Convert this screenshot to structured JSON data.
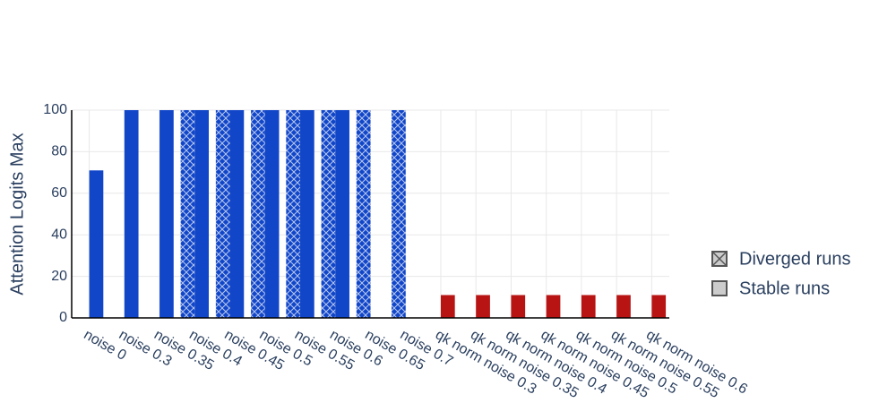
{
  "chart_data": {
    "type": "bar",
    "y_label": "Attention Logits Max",
    "categories": [
      "noise 0",
      "noise 0.3",
      "noise 0.35",
      "noise 0.4",
      "noise 0.45",
      "noise 0.5",
      "noise 0.55",
      "noise 0.6",
      "noise 0.65",
      "noise 0.7",
      "qk norm noise 0.3",
      "qk norm noise 0.35",
      "qk norm noise 0.4",
      "qk norm noise 0.45",
      "qk norm noise 0.5",
      "qk norm noise 0.55",
      "qk norm noise 0.6"
    ],
    "series": [
      {
        "name": "Diverged runs",
        "pattern": "crosshatch",
        "colors": [
          "#1146c9",
          "#1146c9",
          "#1146c9",
          "#1146c9",
          "#1146c9",
          "#1146c9",
          "#1146c9",
          "#1146c9",
          "#1146c9",
          "#1146c9",
          "#b81414",
          "#b81414",
          "#b81414",
          "#b81414",
          "#b81414",
          "#b81414",
          "#b81414"
        ],
        "values": [
          null,
          null,
          null,
          100,
          100,
          100,
          100,
          100,
          100,
          100,
          null,
          null,
          null,
          null,
          null,
          null,
          null
        ]
      },
      {
        "name": "Stable runs",
        "colors": [
          "#1146c9",
          "#1146c9",
          "#1146c9",
          "#1146c9",
          "#1146c9",
          "#1146c9",
          "#1146c9",
          "#1146c9",
          "#1146c9",
          "#1146c9",
          "#b81414",
          "#b81414",
          "#b81414",
          "#b81414",
          "#b81414",
          "#b81414",
          "#b81414"
        ],
        "values": [
          71,
          100,
          100,
          100,
          100,
          100,
          100,
          100,
          null,
          null,
          11,
          11,
          11,
          11,
          11,
          11,
          11
        ]
      }
    ],
    "ylim": [
      0,
      100
    ],
    "yticks": [
      0,
      20,
      40,
      60,
      80,
      100
    ],
    "grid": true
  }
}
